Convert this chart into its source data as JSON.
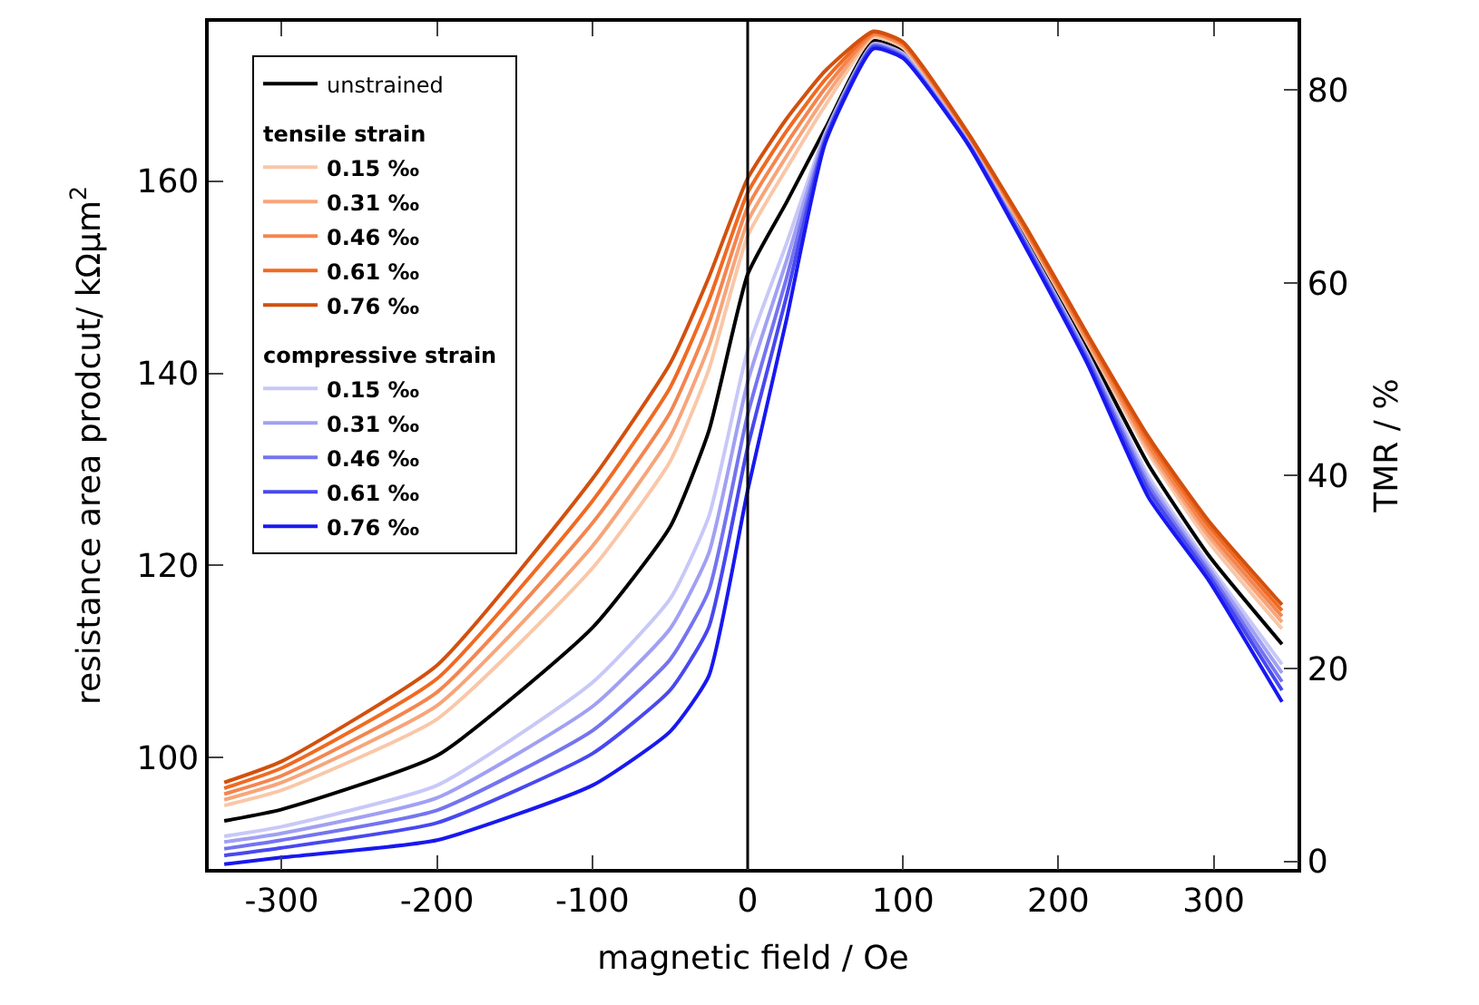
{
  "chart_data": {
    "type": "line",
    "xlabel": "magnetic field / Oe",
    "ylabel": "resistance area prodcut/ kΩμm$^{2}$",
    "y2label": "TMR / %",
    "x": [
      -337,
      -300,
      -200,
      -100,
      -50,
      -25,
      0,
      25,
      50,
      81,
      100,
      142,
      180,
      219,
      258,
      297,
      344
    ],
    "xlim": [
      -347,
      354
    ],
    "xticks": [
      -300,
      -200,
      -100,
      0,
      100,
      200,
      300
    ],
    "ylim": [
      88.4,
      176.6
    ],
    "yticks": [
      100,
      120,
      140,
      160
    ],
    "y2lim": [
      -0.8,
      87.1
    ],
    "y2ticks": [
      0,
      20,
      40,
      60,
      80
    ],
    "legend": "top left",
    "annotations": [
      "tensile strain",
      "compressive strain"
    ],
    "ref_lines": [
      {
        "axis": "x",
        "value": 0,
        "color": "#000000"
      }
    ],
    "series": [
      {
        "name": "unstrained",
        "color": "#000000",
        "values": [
          93.4,
          94.6,
          100.2,
          113.5,
          124,
          134,
          150.3,
          157.8,
          165.5,
          174.6,
          173.5,
          164.2,
          153.8,
          142.5,
          130.5,
          121,
          111.8
        ]
      },
      {
        "name": "0.15 ‰",
        "color": "#f9c7a8",
        "values": [
          95.0,
          96.6,
          104.0,
          119.7,
          130.8,
          140.4,
          154.3,
          161.3,
          167.9,
          175.0,
          173.9,
          164.5,
          154.3,
          143.1,
          131.7,
          122.4,
          113.4
        ]
      },
      {
        "name": "0.31 ‰",
        "color": "#f7a57a",
        "values": [
          95.6,
          97.4,
          105.4,
          122.0,
          133.4,
          142.8,
          155.8,
          162.6,
          168.8,
          175.2,
          174.1,
          164.6,
          154.5,
          143.3,
          132.1,
          123.0,
          114.1
        ]
      },
      {
        "name": "0.46 ‰",
        "color": "#f4854f",
        "values": [
          96.2,
          98.1,
          106.8,
          124.4,
          135.9,
          145.2,
          157.3,
          163.9,
          169.7,
          175.3,
          174.2,
          164.8,
          154.6,
          143.5,
          132.5,
          123.5,
          114.7
        ]
      },
      {
        "name": "0.61 ‰",
        "color": "#f06a22",
        "values": [
          96.8,
          98.9,
          108.2,
          126.7,
          138.5,
          147.6,
          158.8,
          165.2,
          170.6,
          175.5,
          174.4,
          164.9,
          154.8,
          143.8,
          133.0,
          124.1,
          115.3
        ]
      },
      {
        "name": "0.76 ‰",
        "color": "#d2500e",
        "values": [
          97.4,
          99.6,
          109.6,
          129,
          141,
          150,
          160.3,
          166.5,
          171.5,
          175.6,
          174.5,
          165.0,
          155.0,
          144.0,
          133.4,
          124.6,
          115.9
        ]
      },
      {
        "name": "0.15 ‰",
        "color": "#c8c8f8",
        "values": [
          91.8,
          92.8,
          97.1,
          107.8,
          116.5,
          125.1,
          142.4,
          153.5,
          165.0,
          174.3,
          173.3,
          164.1,
          153.4,
          141.9,
          129.3,
          120.1,
          109.7
        ]
      },
      {
        "name": "0.31 ‰",
        "color": "#a0a0f4",
        "values": [
          91.2,
          92.1,
          95.8,
          105.3,
          113.4,
          121.3,
          139.1,
          151.7,
          164.8,
          174.2,
          173.2,
          164.0,
          153.3,
          141.7,
          128.8,
          119.7,
          108.8
        ]
      },
      {
        "name": "0.46 ‰",
        "color": "#7474f0",
        "values": [
          90.5,
          91.4,
          94.5,
          102.8,
          110.2,
          117.4,
          135.7,
          149.9,
          164.5,
          174.1,
          173.0,
          163.9,
          153.2,
          141.5,
          128.3,
          119.3,
          107.9
        ]
      },
      {
        "name": "0.61 ‰",
        "color": "#4848f0",
        "values": [
          89.8,
          90.6,
          93.2,
          100.4,
          107.0,
          113.6,
          132.3,
          148.0,
          164.3,
          174.0,
          172.9,
          163.9,
          153.0,
          141.2,
          127.8,
          118.9,
          107.0
        ]
      },
      {
        "name": "0.76 ‰",
        "color": "#1818f0",
        "values": [
          88.9,
          89.6,
          91.4,
          97.1,
          102.7,
          108.5,
          127.8,
          145.6,
          164,
          173.8,
          172.8,
          163.8,
          152.8,
          140.9,
          127.1,
          118.4,
          105.8
        ]
      }
    ]
  }
}
